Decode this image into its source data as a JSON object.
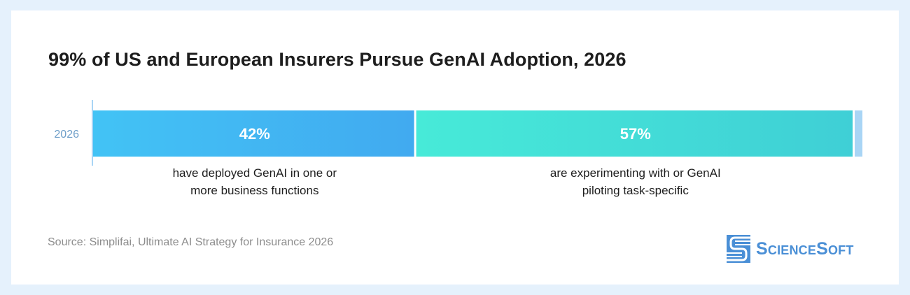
{
  "title": "99% of US and European Insurers Pursue GenAI Adoption, 2026",
  "source": "Source: Simplifai, Ultimate AI Strategy for Insurance 2026",
  "logo": {
    "text": "ScienceSoft",
    "icon": "sciencesoft-logo-icon"
  },
  "colors": {
    "background": "#e5f1fc",
    "segment_1_start": "#42c3f5",
    "segment_1_end": "#41aaf0",
    "segment_2_start": "#47ead8",
    "segment_2_end": "#3fcfd6",
    "remainder": "#a9d5f5",
    "category_label": "#6f9fc9"
  },
  "chart_data": {
    "type": "bar",
    "orientation": "horizontal",
    "stacked": true,
    "categories": [
      "2026"
    ],
    "xlim": [
      0,
      100
    ],
    "series": [
      {
        "values": [
          42
        ],
        "label": "42%",
        "annotation": "have deployed GenAI in one or more business functions"
      },
      {
        "values": [
          57
        ],
        "label": "57%",
        "annotation": "are experimenting with or piloting task-specific GenAI"
      },
      {
        "values": [
          1
        ],
        "label": ""
      }
    ],
    "grid": false,
    "legend": "none"
  }
}
